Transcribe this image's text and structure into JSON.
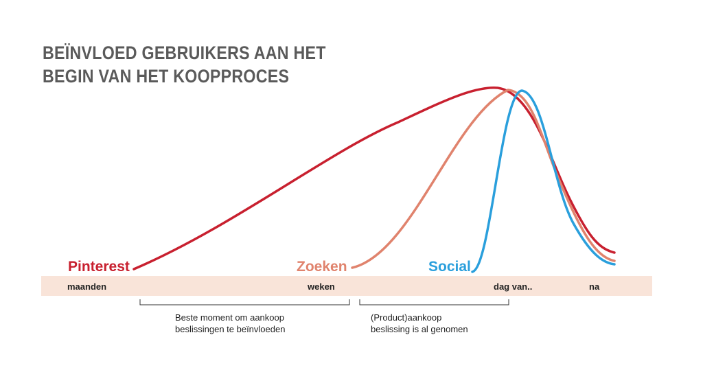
{
  "title": {
    "line1": "BEÏNVLOED GEBRUIKERS AAN HET",
    "line2": "BEGIN VAN HET KOOPPROCES"
  },
  "channels": [
    {
      "name": "Pinterest",
      "color": "#c8202f"
    },
    {
      "name": "Zoeken",
      "color": "#e0836d"
    },
    {
      "name": "Social",
      "color": "#2a9fdc"
    }
  ],
  "timeline": {
    "band_color": "#f9e4d9",
    "labels": [
      "maanden",
      "weken",
      "dag van..",
      "na"
    ]
  },
  "brackets": {
    "left": {
      "line1": "Beste moment om aankoop",
      "line2": "beslissingen te beïnvloeden"
    },
    "right": {
      "line1": "(Product)aankoop",
      "line2": "beslissing is al genomen"
    }
  }
}
